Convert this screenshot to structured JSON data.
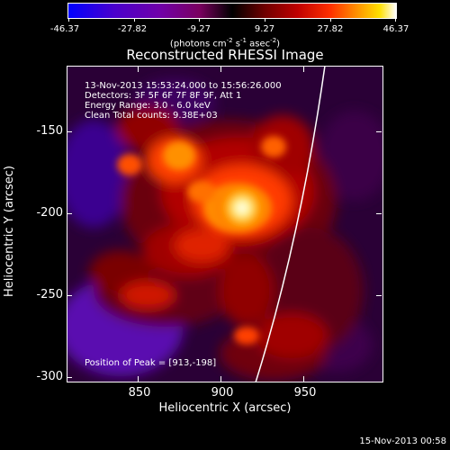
{
  "colorbar": {
    "tick_labels": [
      "-46.37",
      "-27.82",
      "-9.27",
      "9.27",
      "27.82",
      "46.37"
    ],
    "units_prefix": "(photons cm",
    "units_exp1": "-2",
    "units_mid1": " s",
    "units_exp2": "-1",
    "units_mid2": " asec",
    "units_exp3": "-2",
    "units_suffix": ")",
    "colormap": [
      "#0000ff",
      "#000000",
      "#ff0000",
      "#ffff00",
      "#ffffff"
    ]
  },
  "plot": {
    "title": "Reconstructed RHESSI Image",
    "annotation_lines": [
      "13-Nov-2013 15:53:24.000 to 15:56:26.000",
      "Detectors: 3F 5F 6F 7F 8F 9F, Att 1",
      "Energy Range: 3.0 - 6.0 keV",
      "Clean     Total counts: 9.38E+03"
    ],
    "peak_text": "Position of Peak = [913,-198]"
  },
  "axes": {
    "x_title": "Heliocentric X (arcsec)",
    "y_title": "Heliocentric Y (arcsec)",
    "x_tick_labels": [
      "850",
      "900",
      "950"
    ],
    "y_tick_labels": [
      "-150",
      "-200",
      "-250",
      "-300"
    ]
  },
  "footer": {
    "timestamp": "15-Nov-2013 00:58"
  }
}
